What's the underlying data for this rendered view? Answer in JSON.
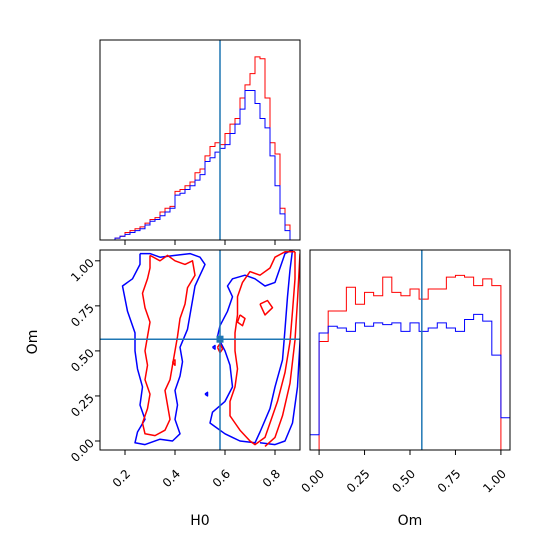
{
  "chart_data": {
    "type": "corner",
    "parameters": [
      "H0",
      "Om"
    ],
    "truth": {
      "H0": 0.58,
      "Om": 0.565
    },
    "colors": {
      "series_a": "#ff0000",
      "series_b": "#0000ff",
      "truth": "#1f77b4"
    },
    "panels": [
      {
        "id": "hist-H0",
        "type": "step-histogram",
        "xlabel": "",
        "xlim": [
          0.1,
          0.9
        ],
        "ylim": [
          0,
          1.07
        ],
        "ticks_x": [
          0.2,
          0.4,
          0.6,
          0.8
        ],
        "tick_labels_x": [],
        "bin_edges": [
          0.1,
          0.12,
          0.14,
          0.16,
          0.18,
          0.2,
          0.22,
          0.24,
          0.26,
          0.28,
          0.3,
          0.32,
          0.34,
          0.36,
          0.38,
          0.4,
          0.42,
          0.44,
          0.46,
          0.48,
          0.5,
          0.52,
          0.54,
          0.56,
          0.58,
          0.6,
          0.62,
          0.64,
          0.66,
          0.68,
          0.7,
          0.72,
          0.74,
          0.76,
          0.78,
          0.8,
          0.82,
          0.84,
          0.86,
          0.88,
          0.9
        ],
        "series": [
          {
            "color": "#ff0000",
            "values": [
              0,
              0,
              0,
              0.01,
              0.02,
              0.04,
              0.05,
              0.06,
              0.07,
              0.09,
              0.11,
              0.12,
              0.15,
              0.17,
              0.18,
              0.26,
              0.27,
              0.29,
              0.31,
              0.36,
              0.38,
              0.45,
              0.5,
              0.52,
              0.51,
              0.57,
              0.62,
              0.65,
              0.76,
              0.83,
              0.89,
              0.98,
              0.97,
              0.76,
              0.52,
              0.46,
              0.17,
              0.08,
              0,
              0
            ]
          },
          {
            "color": "#0000ff",
            "values": [
              0,
              0,
              0,
              0.01,
              0.02,
              0.03,
              0.04,
              0.05,
              0.06,
              0.08,
              0.1,
              0.11,
              0.13,
              0.15,
              0.17,
              0.24,
              0.25,
              0.27,
              0.29,
              0.32,
              0.35,
              0.42,
              0.44,
              0.47,
              0.49,
              0.51,
              0.57,
              0.62,
              0.7,
              0.8,
              0.8,
              0.73,
              0.65,
              0.6,
              0.45,
              0.29,
              0.14,
              0.05,
              0,
              0
            ]
          }
        ]
      },
      {
        "id": "contour-H0-Om",
        "type": "contour",
        "xlabel": "H0",
        "ylabel": "Om",
        "xlim": [
          0.1,
          0.9
        ],
        "ylim": [
          -0.05,
          1.06
        ],
        "ticks_x": [
          0.2,
          0.4,
          0.6,
          0.8
        ],
        "tick_labels_x": [
          "0.2",
          "0.4",
          "0.6",
          "0.8"
        ],
        "ticks_y": [
          0.0,
          0.25,
          0.5,
          0.75,
          1.0
        ],
        "tick_labels_y": [
          "0.00",
          "0.25",
          "0.50",
          "0.75",
          "1.00"
        ],
        "contours": [
          {
            "color": "#0000ff",
            "points": [
              [
                0.26,
                1.04
              ],
              [
                0.3,
                1.04
              ],
              [
                0.34,
                1.02
              ],
              [
                0.4,
                1.03
              ],
              [
                0.46,
                1.04
              ],
              [
                0.5,
                1.02
              ],
              [
                0.52,
                0.98
              ],
              [
                0.5,
                0.92
              ],
              [
                0.48,
                0.86
              ],
              [
                0.47,
                0.78
              ],
              [
                0.46,
                0.7
              ],
              [
                0.45,
                0.62
              ],
              [
                0.42,
                0.52
              ],
              [
                0.43,
                0.44
              ],
              [
                0.42,
                0.36
              ],
              [
                0.4,
                0.28
              ],
              [
                0.41,
                0.2
              ],
              [
                0.4,
                0.12
              ],
              [
                0.42,
                0.04
              ],
              [
                0.39,
                0.0
              ],
              [
                0.34,
                0.01
              ],
              [
                0.28,
                -0.02
              ],
              [
                0.24,
                -0.01
              ],
              [
                0.25,
                0.05
              ],
              [
                0.28,
                0.12
              ],
              [
                0.26,
                0.2
              ],
              [
                0.27,
                0.3
              ],
              [
                0.25,
                0.4
              ],
              [
                0.24,
                0.5
              ],
              [
                0.24,
                0.6
              ],
              [
                0.21,
                0.72
              ],
              [
                0.19,
                0.86
              ],
              [
                0.23,
                0.9
              ],
              [
                0.26,
                0.98
              ],
              [
                0.26,
                1.04
              ]
            ]
          },
          {
            "color": "#0000ff",
            "points": [
              [
                0.87,
                1.06
              ],
              [
                0.86,
                0.95
              ],
              [
                0.85,
                0.8
              ],
              [
                0.84,
                0.62
              ],
              [
                0.83,
                0.45
              ],
              [
                0.8,
                0.3
              ],
              [
                0.78,
                0.18
              ],
              [
                0.74,
                0.05
              ],
              [
                0.72,
                -0.01
              ],
              [
                0.66,
                0.0
              ],
              [
                0.63,
                0.02
              ],
              [
                0.6,
                0.04
              ],
              [
                0.56,
                0.08
              ],
              [
                0.54,
                0.1
              ],
              [
                0.55,
                0.16
              ],
              [
                0.6,
                0.22
              ],
              [
                0.63,
                0.3
              ],
              [
                0.62,
                0.42
              ],
              [
                0.6,
                0.5
              ],
              [
                0.57,
                0.58
              ],
              [
                0.58,
                0.64
              ],
              [
                0.61,
                0.72
              ],
              [
                0.63,
                0.8
              ],
              [
                0.61,
                0.86
              ],
              [
                0.63,
                0.9
              ],
              [
                0.68,
                0.92
              ],
              [
                0.72,
                0.9
              ],
              [
                0.76,
                0.86
              ],
              [
                0.8,
                0.88
              ],
              [
                0.82,
                0.96
              ],
              [
                0.84,
                1.04
              ],
              [
                0.87,
                1.06
              ]
            ]
          },
          {
            "color": "#ff0000",
            "points": [
              [
                0.3,
                1.03
              ],
              [
                0.34,
                1.0
              ],
              [
                0.37,
                1.03
              ],
              [
                0.4,
                1.0
              ],
              [
                0.44,
                0.98
              ],
              [
                0.47,
                1.0
              ],
              [
                0.48,
                0.92
              ],
              [
                0.45,
                0.85
              ],
              [
                0.44,
                0.76
              ],
              [
                0.42,
                0.68
              ],
              [
                0.41,
                0.58
              ],
              [
                0.4,
                0.5
              ],
              [
                0.39,
                0.42
              ],
              [
                0.38,
                0.34
              ],
              [
                0.36,
                0.28
              ],
              [
                0.37,
                0.2
              ],
              [
                0.38,
                0.12
              ],
              [
                0.36,
                0.06
              ],
              [
                0.32,
                0.03
              ],
              [
                0.28,
                0.04
              ],
              [
                0.27,
                0.1
              ],
              [
                0.29,
                0.18
              ],
              [
                0.3,
                0.26
              ],
              [
                0.28,
                0.34
              ],
              [
                0.29,
                0.42
              ],
              [
                0.28,
                0.5
              ],
              [
                0.29,
                0.58
              ],
              [
                0.3,
                0.66
              ],
              [
                0.28,
                0.74
              ],
              [
                0.27,
                0.82
              ],
              [
                0.29,
                0.9
              ],
              [
                0.3,
                0.96
              ],
              [
                0.3,
                1.03
              ]
            ]
          },
          {
            "color": "#ff0000",
            "points": [
              [
                0.88,
                1.05
              ],
              [
                0.88,
                0.9
              ],
              [
                0.87,
                0.72
              ],
              [
                0.86,
                0.55
              ],
              [
                0.84,
                0.38
              ],
              [
                0.81,
                0.22
              ],
              [
                0.78,
                0.1
              ],
              [
                0.76,
                0.02
              ],
              [
                0.72,
                -0.02
              ],
              [
                0.7,
                0.0
              ],
              [
                0.68,
                0.03
              ],
              [
                0.66,
                0.06
              ],
              [
                0.64,
                0.1
              ],
              [
                0.62,
                0.14
              ],
              [
                0.62,
                0.22
              ],
              [
                0.64,
                0.3
              ],
              [
                0.65,
                0.4
              ],
              [
                0.64,
                0.5
              ],
              [
                0.64,
                0.6
              ],
              [
                0.65,
                0.7
              ],
              [
                0.65,
                0.8
              ],
              [
                0.67,
                0.88
              ],
              [
                0.7,
                0.94
              ],
              [
                0.74,
                0.92
              ],
              [
                0.78,
                0.96
              ],
              [
                0.8,
                1.02
              ],
              [
                0.84,
                1.05
              ],
              [
                0.88,
                1.05
              ]
            ]
          },
          {
            "color": "#0000ff",
            "points": [
              [
                0.92,
                1.07
              ],
              [
                0.91,
                0.8
              ],
              [
                0.9,
                0.55
              ],
              [
                0.89,
                0.3
              ],
              [
                0.87,
                0.1
              ],
              [
                0.84,
                0.0
              ],
              [
                0.8,
                -0.02
              ],
              [
                0.74,
                -0.01
              ]
            ]
          },
          {
            "color": "#ff0000",
            "points": [
              [
                0.9,
                1.04
              ],
              [
                0.89,
                0.78
              ],
              [
                0.88,
                0.56
              ],
              [
                0.86,
                0.32
              ],
              [
                0.83,
                0.14
              ],
              [
                0.8,
                0.02
              ],
              [
                0.76,
                -0.03
              ]
            ]
          },
          {
            "color": "#ff0000",
            "points": [
              [
                0.74,
                0.76
              ],
              [
                0.77,
                0.78
              ],
              [
                0.79,
                0.74
              ],
              [
                0.76,
                0.7
              ],
              [
                0.74,
                0.76
              ]
            ]
          },
          {
            "color": "#ff0000",
            "points": [
              [
                0.66,
                0.7
              ],
              [
                0.68,
                0.68
              ],
              [
                0.67,
                0.64
              ],
              [
                0.65,
                0.66
              ],
              [
                0.66,
                0.7
              ]
            ]
          },
          {
            "color": "#ff0000",
            "points": [
              [
                0.57,
                0.52
              ],
              [
                0.58,
                0.54
              ],
              [
                0.59,
                0.51
              ],
              [
                0.58,
                0.49
              ],
              [
                0.57,
                0.52
              ]
            ]
          },
          {
            "color": "#ff0000",
            "points": [
              [
                0.39,
                0.44
              ],
              [
                0.4,
                0.45
              ],
              [
                0.4,
                0.42
              ],
              [
                0.39,
                0.44
              ]
            ]
          },
          {
            "color": "#0000ff",
            "points": [
              [
                0.55,
                0.52
              ],
              [
                0.56,
                0.53
              ],
              [
                0.56,
                0.51
              ],
              [
                0.55,
                0.52
              ]
            ]
          },
          {
            "color": "#0000ff",
            "points": [
              [
                0.52,
                0.26
              ],
              [
                0.53,
                0.27
              ],
              [
                0.53,
                0.25
              ],
              [
                0.52,
                0.26
              ]
            ]
          }
        ]
      },
      {
        "id": "hist-Om",
        "type": "step-histogram",
        "xlabel": "Om",
        "xlim": [
          -0.05,
          1.05
        ],
        "ylim": [
          0,
          1.18
        ],
        "ticks_x": [
          0.0,
          0.25,
          0.5,
          0.75,
          1.0
        ],
        "tick_labels_x": [
          "0.00",
          "0.25",
          "0.50",
          "0.75",
          "1.00"
        ],
        "bin_edges": [
          -0.05,
          0.0,
          0.05,
          0.1,
          0.15,
          0.2,
          0.25,
          0.3,
          0.35,
          0.4,
          0.45,
          0.5,
          0.55,
          0.6,
          0.65,
          0.7,
          0.75,
          0.8,
          0.85,
          0.9,
          0.95,
          1.0,
          1.05
        ],
        "series": [
          {
            "color": "#ff0000",
            "values": [
              0,
              0.64,
              0.82,
              0.82,
              0.96,
              0.86,
              0.93,
              0.91,
              1.02,
              0.93,
              0.91,
              0.95,
              0.89,
              0.95,
              0.95,
              1.02,
              1.03,
              1.02,
              0.97,
              1.01,
              0.97,
              0
            ]
          },
          {
            "color": "#0000ff",
            "values": [
              0.09,
              0.69,
              0.73,
              0.72,
              0.7,
              0.75,
              0.73,
              0.75,
              0.74,
              0.75,
              0.7,
              0.75,
              0.7,
              0.72,
              0.75,
              0.72,
              0.7,
              0.77,
              0.8,
              0.76,
              0.56,
              0.19
            ]
          }
        ]
      }
    ]
  }
}
